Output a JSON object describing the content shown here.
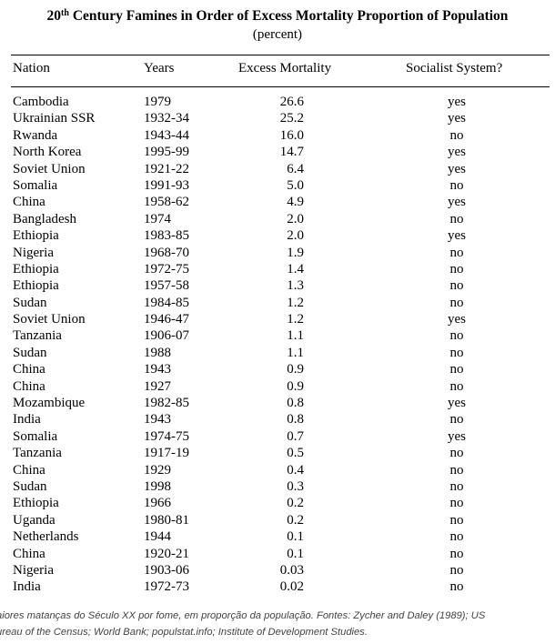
{
  "title": {
    "prefix": "20",
    "superscript": "th",
    "suffix": " Century Famines in Order of Excess Mortality Proportion of Population"
  },
  "subtitle": "(percent)",
  "columns": {
    "nation": "Nation",
    "years": "Years",
    "excess": "Excess Mortality",
    "socialist": "Socialist System?"
  },
  "rows": [
    {
      "nation": "Cambodia",
      "years": "1979",
      "excess": "26.6",
      "socialist": "yes"
    },
    {
      "nation": "Ukrainian SSR",
      "years": "1932-34",
      "excess": "25.2",
      "socialist": "yes"
    },
    {
      "nation": "Rwanda",
      "years": "1943-44",
      "excess": "16.0",
      "socialist": "no"
    },
    {
      "nation": "North Korea",
      "years": "1995-99",
      "excess": "14.7",
      "socialist": "yes"
    },
    {
      "nation": "Soviet Union",
      "years": "1921-22",
      "excess": "6.4",
      "socialist": "yes"
    },
    {
      "nation": "Somalia",
      "years": "1991-93",
      "excess": "5.0",
      "socialist": "no"
    },
    {
      "nation": "China",
      "years": "1958-62",
      "excess": "4.9",
      "socialist": "yes"
    },
    {
      "nation": "Bangladesh",
      "years": "1974",
      "excess": "2.0",
      "socialist": "no"
    },
    {
      "nation": "Ethiopia",
      "years": "1983-85",
      "excess": "2.0",
      "socialist": "yes"
    },
    {
      "nation": "Nigeria",
      "years": "1968-70",
      "excess": "1.9",
      "socialist": "no"
    },
    {
      "nation": "Ethiopia",
      "years": "1972-75",
      "excess": "1.4",
      "socialist": "no"
    },
    {
      "nation": "Ethiopia",
      "years": "1957-58",
      "excess": "1.3",
      "socialist": "no"
    },
    {
      "nation": "Sudan",
      "years": "1984-85",
      "excess": "1.2",
      "socialist": "no"
    },
    {
      "nation": "Soviet Union",
      "years": "1946-47",
      "excess": "1.2",
      "socialist": "yes"
    },
    {
      "nation": "Tanzania",
      "years": "1906-07",
      "excess": "1.1",
      "socialist": "no"
    },
    {
      "nation": "Sudan",
      "years": "1988",
      "excess": "1.1",
      "socialist": "no"
    },
    {
      "nation": "China",
      "years": "1943",
      "excess": "0.9",
      "socialist": "no"
    },
    {
      "nation": "China",
      "years": "1927",
      "excess": "0.9",
      "socialist": "no"
    },
    {
      "nation": "Mozambique",
      "years": "1982-85",
      "excess": "0.8",
      "socialist": "yes"
    },
    {
      "nation": "India",
      "years": "1943",
      "excess": "0.8",
      "socialist": "no"
    },
    {
      "nation": "Somalia",
      "years": "1974-75",
      "excess": "0.7",
      "socialist": "yes"
    },
    {
      "nation": "Tanzania",
      "years": "1917-19",
      "excess": "0.5",
      "socialist": "no"
    },
    {
      "nation": "China",
      "years": "1929",
      "excess": "0.4",
      "socialist": "no"
    },
    {
      "nation": "Sudan",
      "years": "1998",
      "excess": "0.3",
      "socialist": "no"
    },
    {
      "nation": "Ethiopia",
      "years": "1966",
      "excess": "0.2",
      "socialist": "no"
    },
    {
      "nation": "Uganda",
      "years": "1980-81",
      "excess": "0.2",
      "socialist": "no"
    },
    {
      "nation": "Netherlands",
      "years": "1944",
      "excess": "0.1",
      "socialist": "no"
    },
    {
      "nation": "China",
      "years": "1920-21",
      "excess": "0.1",
      "socialist": "no"
    },
    {
      "nation": "Nigeria",
      "years": "1903-06",
      "excess": "0.03",
      "socialist": "no"
    },
    {
      "nation": "India",
      "years": "1972-73",
      "excess": "0.02",
      "socialist": "no"
    }
  ],
  "caption": {
    "line1": "aiores matanças do Século XX por fome, em proporção da população. Fontes: Zycher and Daley (1989); US",
    "line2": "ureau of the Census; World Bank; populstat.info; Institute of Development Studies."
  }
}
